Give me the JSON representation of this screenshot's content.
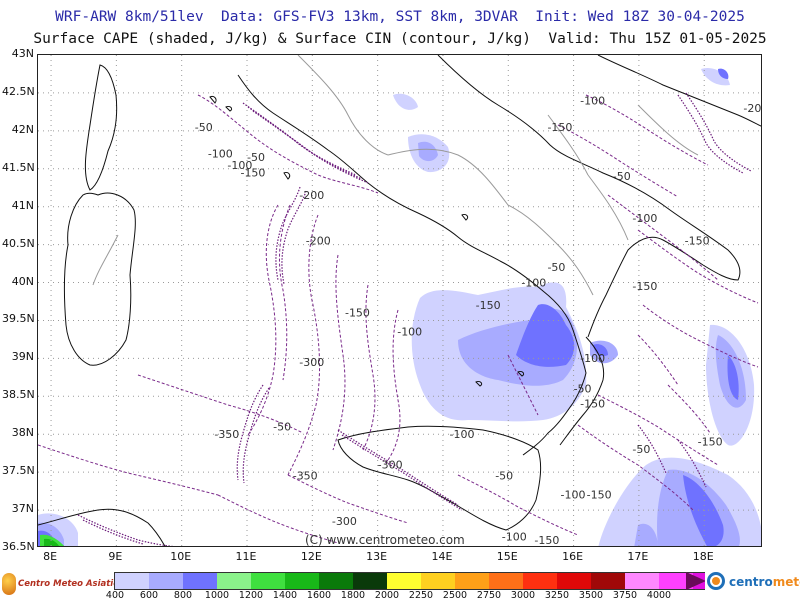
{
  "header": {
    "line1": "WRF-ARW 8km/51lev  Data: GFS-FV3 13km, SST 8km, 3DVAR  Init: Wed 18Z 30-04-2025",
    "line2": "Surface CAPE (shaded, J/kg) & Surface CIN (contour, J/kg)  Valid: Thu 15Z 01-05-2025"
  },
  "axes": {
    "lat_labels": [
      "43N",
      "42.5N",
      "42N",
      "41.5N",
      "41N",
      "40.5N",
      "40N",
      "39.5N",
      "39N",
      "38.5N",
      "38N",
      "37.5N",
      "37N",
      "36.5N"
    ],
    "lon_labels": [
      "8E",
      "9E",
      "10E",
      "11E",
      "12E",
      "13E",
      "14E",
      "15E",
      "16E",
      "17E",
      "18E"
    ]
  },
  "cin_labels": [
    {
      "text": "-50",
      "lat": 42.0,
      "lon": 10.2
    },
    {
      "text": "-100",
      "lat": 41.65,
      "lon": 10.4
    },
    {
      "text": "-50",
      "lat": 41.6,
      "lon": 11.0
    },
    {
      "text": "-100",
      "lat": 41.5,
      "lon": 10.7
    },
    {
      "text": "-150",
      "lat": 41.4,
      "lon": 10.9
    },
    {
      "text": "-200",
      "lat": 41.1,
      "lon": 11.8
    },
    {
      "text": "-100",
      "lat": 42.35,
      "lon": 16.1
    },
    {
      "text": "-150",
      "lat": 42.0,
      "lon": 15.6
    },
    {
      "text": "-200",
      "lat": 42.25,
      "lon": 18.6
    },
    {
      "text": "-50",
      "lat": 41.35,
      "lon": 16.6
    },
    {
      "text": "-100",
      "lat": 40.8,
      "lon": 16.9
    },
    {
      "text": "-150",
      "lat": 40.5,
      "lon": 17.7
    },
    {
      "text": "-200",
      "lat": 40.5,
      "lon": 11.9
    },
    {
      "text": "-50",
      "lat": 40.15,
      "lon": 15.6
    },
    {
      "text": "-100",
      "lat": 39.95,
      "lon": 15.2
    },
    {
      "text": "-150",
      "lat": 39.9,
      "lon": 16.9
    },
    {
      "text": "-150",
      "lat": 39.65,
      "lon": 14.5
    },
    {
      "text": "-150",
      "lat": 39.55,
      "lon": 12.5
    },
    {
      "text": "-100",
      "lat": 39.3,
      "lon": 13.3
    },
    {
      "text": "-100",
      "lat": 38.95,
      "lon": 16.1
    },
    {
      "text": "-300",
      "lat": 38.9,
      "lon": 11.8
    },
    {
      "text": "-50",
      "lat": 38.55,
      "lon": 16.0
    },
    {
      "text": "-150",
      "lat": 38.35,
      "lon": 16.1
    },
    {
      "text": "-50",
      "lat": 38.05,
      "lon": 11.4
    },
    {
      "text": "-350",
      "lat": 37.95,
      "lon": 10.5
    },
    {
      "text": "-100",
      "lat": 37.95,
      "lon": 14.1
    },
    {
      "text": "-50",
      "lat": 37.75,
      "lon": 16.9
    },
    {
      "text": "-150",
      "lat": 37.85,
      "lon": 17.9
    },
    {
      "text": "-300",
      "lat": 37.55,
      "lon": 13.0
    },
    {
      "text": "-350",
      "lat": 37.4,
      "lon": 11.7
    },
    {
      "text": "-50",
      "lat": 37.4,
      "lon": 14.8
    },
    {
      "text": "-100",
      "lat": 37.15,
      "lon": 15.8
    },
    {
      "text": "-150",
      "lat": 37.15,
      "lon": 16.2
    },
    {
      "text": "-300",
      "lat": 36.8,
      "lon": 12.3
    },
    {
      "text": "-100",
      "lat": 36.6,
      "lon": 14.9
    },
    {
      "text": "-150",
      "lat": 36.55,
      "lon": 15.4
    }
  ],
  "credit": "(C) www.centrometeo.com",
  "colorbar": {
    "colors": [
      "#d0d2ff",
      "#a8abff",
      "#6f72ff",
      "#8bf28b",
      "#3fe03f",
      "#18b818",
      "#0a7a0a",
      "#0a3a0a",
      "#ffff30",
      "#ffd020",
      "#ffa018",
      "#ff7018",
      "#ff3010",
      "#e00808",
      "#a00808",
      "#ff88ff",
      "#ff40ff",
      "#e010e0",
      "#a010a0",
      "#600060"
    ],
    "labels": [
      "400",
      "600",
      "800",
      "1000",
      "1200",
      "1400",
      "1600",
      "1800",
      "2000",
      "2250",
      "2500",
      "2750",
      "3000",
      "3250",
      "3500",
      "3750",
      "4000"
    ]
  },
  "logos": {
    "left_text": "Centro Meteo Asiatico",
    "right_text_a": "centro",
    "right_text_b": "meteo"
  }
}
